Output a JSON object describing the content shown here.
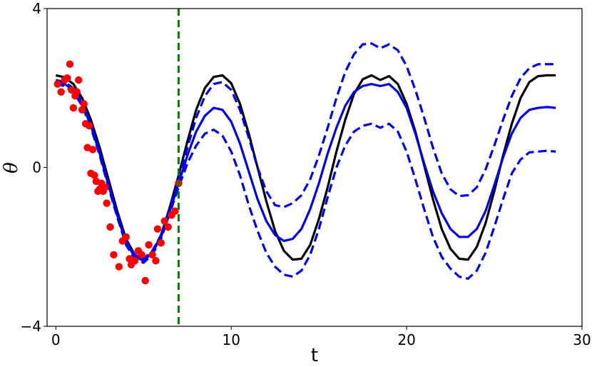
{
  "chart_data": {
    "type": "line",
    "title": "",
    "xlabel": "t",
    "ylabel": "θ",
    "xlim": [
      -0.5,
      30
    ],
    "ylim": [
      -4,
      4
    ],
    "x_ticks": [
      0,
      10,
      20,
      30
    ],
    "y_ticks": [
      -4,
      0,
      4
    ],
    "x_tick_labels": [
      "0",
      "10",
      "20",
      "30"
    ],
    "y_tick_labels": [
      "−4",
      "0",
      "4"
    ],
    "grid": false,
    "legend": "none",
    "vline": {
      "x": 7.0,
      "color": "#008000",
      "style": "dashed"
    },
    "series": [
      {
        "kind": "line",
        "color": "#000000",
        "style": "solid",
        "x": [
          0,
          0.5,
          1,
          1.5,
          2,
          2.5,
          3,
          3.5,
          4,
          4.5,
          5,
          5.5,
          6,
          6.5,
          7,
          7.5,
          8,
          8.5,
          9,
          9.5,
          10,
          10.5,
          11,
          11.5,
          12,
          12.5,
          13,
          13.5,
          14,
          14.5,
          15,
          15.5,
          16,
          16.5,
          17,
          17.5,
          18,
          18.5,
          19,
          19.5,
          20,
          20.5,
          21,
          21.5,
          22,
          22.5,
          23,
          23.5,
          24,
          24.5,
          25,
          25.5,
          26,
          26.5,
          27,
          27.5,
          28,
          28.5
        ],
        "y": [
          2.32,
          2.27,
          2.1,
          1.75,
          1.2,
          0.5,
          -0.3,
          -1.1,
          -1.8,
          -2.2,
          -2.32,
          -2.15,
          -1.7,
          -1.0,
          -0.2,
          0.65,
          1.45,
          2.0,
          2.28,
          2.32,
          2.12,
          1.6,
          0.85,
          0.0,
          -0.85,
          -1.6,
          -2.1,
          -2.32,
          -2.3,
          -1.95,
          -1.3,
          -0.5,
          0.4,
          1.2,
          1.85,
          2.22,
          2.32,
          2.2,
          2.3,
          2.1,
          1.6,
          0.9,
          0.05,
          -0.8,
          -1.55,
          -2.05,
          -2.3,
          -2.32,
          -2.0,
          -1.4,
          -0.6,
          0.3,
          1.1,
          1.75,
          2.15,
          2.3,
          2.32,
          2.32
        ]
      },
      {
        "kind": "line",
        "color": "#0000ee",
        "style": "solid",
        "x": [
          0,
          0.5,
          1,
          1.5,
          2,
          2.5,
          3,
          3.5,
          4,
          4.5,
          5,
          5.5,
          6,
          6.5,
          7,
          7.5,
          8,
          8.5,
          9,
          9.5,
          10,
          10.5,
          11,
          11.5,
          12,
          12.5,
          13,
          13.5,
          14,
          14.5,
          15,
          15.5,
          16,
          16.5,
          17,
          17.5,
          18,
          18.5,
          19,
          19.5,
          20,
          20.5,
          21,
          21.5,
          22,
          22.5,
          23,
          23.5,
          24,
          24.5,
          25,
          25.5,
          26,
          26.5,
          27,
          27.5,
          28,
          28.5
        ],
        "y": [
          2.15,
          2.1,
          1.95,
          1.6,
          1.05,
          0.35,
          -0.45,
          -1.2,
          -1.9,
          -2.25,
          -2.35,
          -2.15,
          -1.75,
          -1.1,
          -0.4,
          0.3,
          0.9,
          1.3,
          1.5,
          1.45,
          1.15,
          0.6,
          -0.1,
          -0.8,
          -1.35,
          -1.7,
          -1.85,
          -1.8,
          -1.55,
          -1.05,
          -0.4,
          0.35,
          1.0,
          1.55,
          1.9,
          2.05,
          2.1,
          2.05,
          2.1,
          1.9,
          1.5,
          0.85,
          0.1,
          -0.6,
          -1.15,
          -1.55,
          -1.75,
          -1.75,
          -1.55,
          -1.1,
          -0.45,
          0.25,
          0.85,
          1.25,
          1.45,
          1.5,
          1.52,
          1.5
        ]
      },
      {
        "kind": "line",
        "color": "#0000ee",
        "style": "dashed",
        "x": [
          0,
          0.5,
          1,
          1.5,
          2,
          2.5,
          3,
          3.5,
          4,
          4.5,
          5,
          5.5,
          6,
          6.5,
          7,
          7.5,
          8,
          8.5,
          9,
          9.5,
          10,
          10.5,
          11,
          11.5,
          12,
          12.5,
          13,
          13.5,
          14,
          14.5,
          15,
          15.5,
          16,
          16.5,
          17,
          17.5,
          18,
          18.5,
          19,
          19.5,
          20,
          20.5,
          21,
          21.5,
          22,
          22.5,
          23,
          23.5,
          24,
          24.5,
          25,
          25.5,
          26,
          26.5,
          27,
          27.5,
          28,
          28.5
        ],
        "y": [
          2.2,
          2.15,
          2.0,
          1.65,
          1.1,
          0.4,
          -0.4,
          -1.15,
          -1.85,
          -2.2,
          -2.3,
          -2.1,
          -1.7,
          -1.05,
          -0.3,
          0.5,
          1.25,
          1.8,
          2.1,
          2.15,
          1.95,
          1.45,
          0.75,
          0.0,
          -0.6,
          -0.95,
          -1.0,
          -0.9,
          -0.7,
          -0.3,
          0.3,
          1.0,
          1.75,
          2.4,
          2.85,
          3.1,
          3.12,
          3.0,
          3.1,
          2.95,
          2.55,
          1.95,
          1.25,
          0.5,
          -0.15,
          -0.55,
          -0.72,
          -0.7,
          -0.5,
          -0.05,
          0.55,
          1.2,
          1.8,
          2.25,
          2.5,
          2.6,
          2.6,
          2.6
        ]
      },
      {
        "kind": "line",
        "color": "#0000ee",
        "style": "dashed",
        "x": [
          0,
          0.5,
          1,
          1.5,
          2,
          2.5,
          3,
          3.5,
          4,
          4.5,
          5,
          5.5,
          6,
          6.5,
          7,
          7.5,
          8,
          8.5,
          9,
          9.5,
          10,
          10.5,
          11,
          11.5,
          12,
          12.5,
          13,
          13.5,
          14,
          14.5,
          15,
          15.5,
          16,
          16.5,
          17,
          17.5,
          18,
          18.5,
          19,
          19.5,
          20,
          20.5,
          21,
          21.5,
          22,
          22.5,
          23,
          23.5,
          24,
          24.5,
          25,
          25.5,
          26,
          26.5,
          27,
          27.5,
          28,
          28.5
        ],
        "y": [
          2.1,
          2.05,
          1.9,
          1.55,
          1.0,
          0.3,
          -0.5,
          -1.25,
          -1.95,
          -2.3,
          -2.4,
          -2.2,
          -1.8,
          -1.15,
          -0.5,
          0.1,
          0.55,
          0.85,
          0.95,
          0.8,
          0.4,
          -0.2,
          -0.95,
          -1.6,
          -2.15,
          -2.5,
          -2.7,
          -2.75,
          -2.6,
          -2.2,
          -1.55,
          -0.75,
          0.0,
          0.55,
          0.9,
          1.05,
          1.1,
          1.0,
          1.1,
          0.9,
          0.4,
          -0.3,
          -1.05,
          -1.75,
          -2.25,
          -2.55,
          -2.75,
          -2.8,
          -2.6,
          -2.15,
          -1.5,
          -0.8,
          -0.15,
          0.2,
          0.38,
          0.4,
          0.42,
          0.4
        ]
      },
      {
        "kind": "scatter",
        "color": "#ff0000",
        "x": [
          0.1,
          0.3,
          0.5,
          0.65,
          0.8,
          0.9,
          1.0,
          1.1,
          1.2,
          1.3,
          1.5,
          1.6,
          1.7,
          1.8,
          1.9,
          2.0,
          2.1,
          2.2,
          2.3,
          2.4,
          2.5,
          2.6,
          2.7,
          2.8,
          2.9,
          3.1,
          3.3,
          3.6,
          3.8,
          4.0,
          4.2,
          4.3,
          4.5,
          4.7,
          4.9,
          5.1,
          5.3,
          5.5,
          5.7,
          5.8,
          6.0,
          6.2,
          6.4,
          6.6,
          6.8,
          7.0
        ],
        "y": [
          2.1,
          1.9,
          2.2,
          2.25,
          2.6,
          1.95,
          1.5,
          1.8,
          1.9,
          2.2,
          1.45,
          1.6,
          1.1,
          0.5,
          1.05,
          -0.15,
          0.45,
          -0.2,
          -0.35,
          -0.6,
          -0.55,
          -0.4,
          -0.6,
          -0.5,
          -0.9,
          -1.5,
          -2.2,
          -2.5,
          -1.85,
          -1.75,
          -2.3,
          -2.45,
          -2.35,
          -2.1,
          -2.2,
          -2.85,
          -1.95,
          -2.2,
          -2.35,
          -1.55,
          -1.9,
          -1.35,
          -1.5,
          -1.2,
          -1.1,
          -0.4
        ]
      }
    ]
  }
}
